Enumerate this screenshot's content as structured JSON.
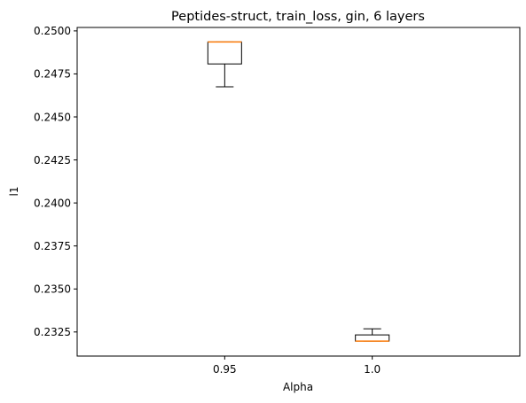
{
  "chart_data": {
    "type": "box",
    "title": "Peptides-struct, train_loss, gin, 6 layers",
    "xlabel": "Alpha",
    "ylabel": "l1",
    "categories": [
      "0.95",
      "1.0"
    ],
    "boxes": [
      {
        "category": "0.95",
        "whisker_low": 0.24675,
        "q1": 0.24808,
        "median": 0.24936,
        "q3": 0.24936,
        "whisker_high": 0.24936
      },
      {
        "category": "1.0",
        "whisker_low": 0.23197,
        "q1": 0.23197,
        "median": 0.23197,
        "q3": 0.23233,
        "whisker_high": 0.23268
      }
    ],
    "ylim": [
      0.2311,
      0.2502
    ],
    "yticks": [
      "0.2325",
      "0.2350",
      "0.2375",
      "0.2400",
      "0.2425",
      "0.2450",
      "0.2475",
      "0.2500"
    ],
    "grid": false,
    "colors": {
      "box": "#000000",
      "median": "#ff7f0e"
    }
  }
}
